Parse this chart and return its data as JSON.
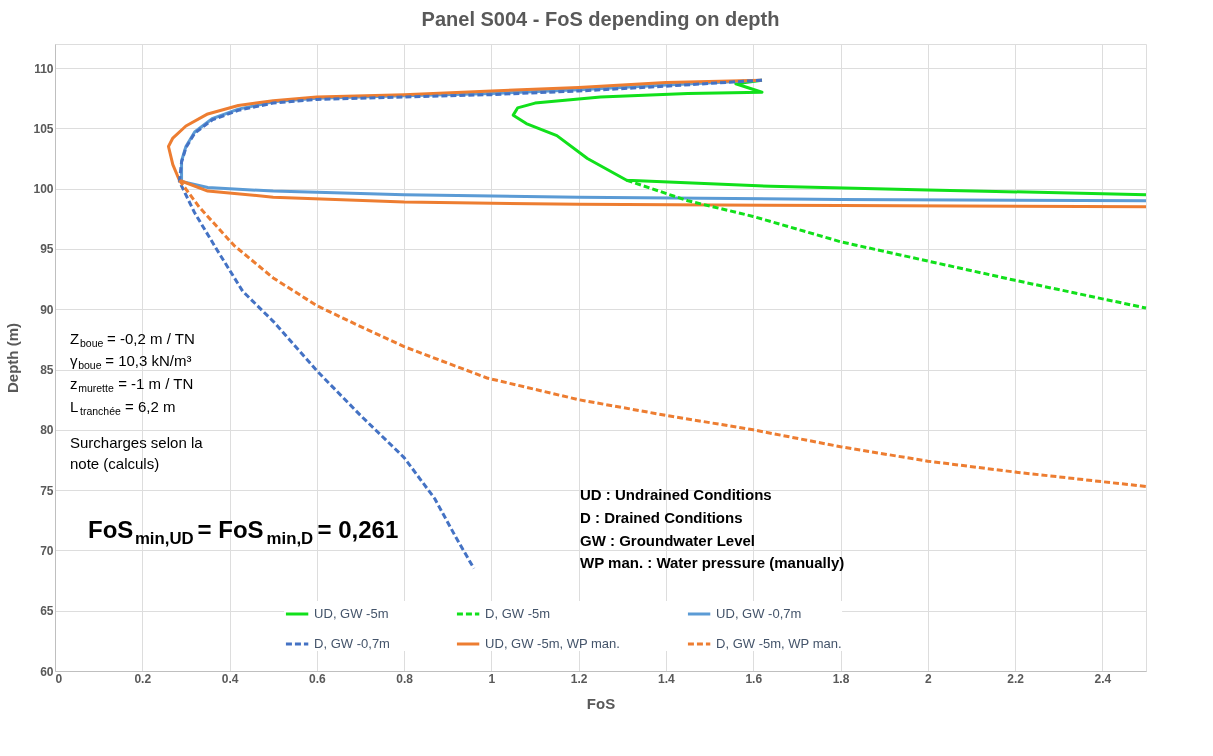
{
  "chart_data": {
    "type": "line",
    "title": "Panel S004 - FoS depending on depth",
    "xlabel": "FoS",
    "ylabel": "Depth (m)",
    "xlim": [
      0,
      2.5
    ],
    "xticks": [
      0,
      0.2,
      0.4,
      0.6,
      0.8,
      1,
      1.2,
      1.4,
      1.6,
      1.8,
      2,
      2.2,
      2.4
    ],
    "ylim": [
      60,
      112
    ],
    "yticks": [
      60,
      65,
      70,
      75,
      80,
      85,
      90,
      95,
      100,
      105,
      110
    ],
    "grid": true,
    "legend": "bottom",
    "marker": "none",
    "series": [
      {
        "name": "UD, GW -5m",
        "color": "#11e01b",
        "line_style": "solid",
        "x": [
          1.62,
          1.56,
          1.62,
          1.45,
          1.25,
          1.1,
          1.06,
          1.05,
          1.08,
          1.15,
          1.22,
          1.31,
          1.64,
          2.0,
          2.5
        ],
        "values": [
          109.0,
          108.7,
          108.0,
          107.9,
          107.6,
          107.1,
          106.7,
          106.1,
          105.4,
          104.4,
          102.5,
          100.7,
          100.2,
          99.9,
          99.5
        ]
      },
      {
        "name": "D, GW -5m",
        "color": "#11e01b",
        "line_style": "dashed",
        "x": [
          1.31,
          1.45,
          1.6,
          1.8,
          2.0,
          2.2,
          2.5
        ],
        "values": [
          100.7,
          99.0,
          97.7,
          95.6,
          94.0,
          92.4,
          90.1
        ]
      },
      {
        "name": "UD, GW -0,7m",
        "color": "#5b9bd5",
        "line_style": "solid",
        "x": [
          1.62,
          1.4,
          1.2,
          1.0,
          0.8,
          0.6,
          0.5,
          0.42,
          0.36,
          0.32,
          0.3,
          0.29,
          0.29,
          0.35,
          0.5,
          0.8,
          1.2,
          1.8,
          2.5
        ],
        "values": [
          109.0,
          108.6,
          108.2,
          107.9,
          107.7,
          107.5,
          107.2,
          106.6,
          105.8,
          104.7,
          103.5,
          102.3,
          100.6,
          100.1,
          99.8,
          99.5,
          99.3,
          99.1,
          99.0
        ]
      },
      {
        "name": "D, GW -0,7m",
        "color": "#4472c4",
        "line_style": "dashed",
        "x": [
          1.62,
          1.4,
          1.2,
          1.0,
          0.8,
          0.6,
          0.5,
          0.42,
          0.36,
          0.32,
          0.3,
          0.29,
          0.285,
          0.32,
          0.37,
          0.43,
          0.5,
          0.6,
          0.7,
          0.8,
          0.87,
          0.92,
          0.96
        ],
        "values": [
          109.0,
          108.5,
          108.1,
          107.8,
          107.6,
          107.4,
          107.1,
          106.5,
          105.7,
          104.6,
          103.4,
          102.2,
          100.6,
          98.0,
          95.0,
          91.5,
          89.0,
          84.9,
          81.2,
          77.7,
          74.3,
          71.0,
          68.5
        ]
      },
      {
        "name": "UD, GW -5m, WP man.",
        "color": "#ed7d31",
        "line_style": "solid",
        "x": [
          1.62,
          1.4,
          1.2,
          1.0,
          0.8,
          0.6,
          0.5,
          0.42,
          0.35,
          0.3,
          0.27,
          0.26,
          0.27,
          0.285,
          0.35,
          0.5,
          0.8,
          1.2,
          1.8,
          2.5
        ],
        "values": [
          109.0,
          108.8,
          108.4,
          108.1,
          107.8,
          107.6,
          107.3,
          106.9,
          106.2,
          105.2,
          104.2,
          103.5,
          102.0,
          100.7,
          99.8,
          99.3,
          98.9,
          98.7,
          98.6,
          98.5
        ]
      },
      {
        "name": "D, GW -5m, WP man.",
        "color": "#ed7d31",
        "line_style": "dashed",
        "x": [
          0.285,
          0.33,
          0.41,
          0.5,
          0.6,
          0.71,
          0.8,
          0.99,
          1.2,
          1.4,
          1.6,
          1.8,
          2.0,
          2.2,
          2.5
        ],
        "values": [
          100.7,
          98.5,
          95.3,
          92.6,
          90.3,
          88.4,
          86.9,
          84.3,
          82.5,
          81.2,
          80.0,
          78.6,
          77.4,
          76.5,
          75.3
        ]
      }
    ],
    "annotations": [
      "Z$_{boue}$ = -0,2 m / TN",
      "γ$_{boue}$ = 10,3 kN/m³",
      "z$_{murette}$ = -1 m / TN",
      "L$_{tranchée}$ = 6,2 m",
      "Surcharges selon la",
      "note (calculs)",
      "FoS$_{min,UD}$ =  FoS$_{min,D}$ = 0,261",
      "UD : Undrained Conditions",
      "D : Drained Conditions",
      "GW : Groundwater Level",
      "WP man. : Water pressure (manually)"
    ]
  }
}
